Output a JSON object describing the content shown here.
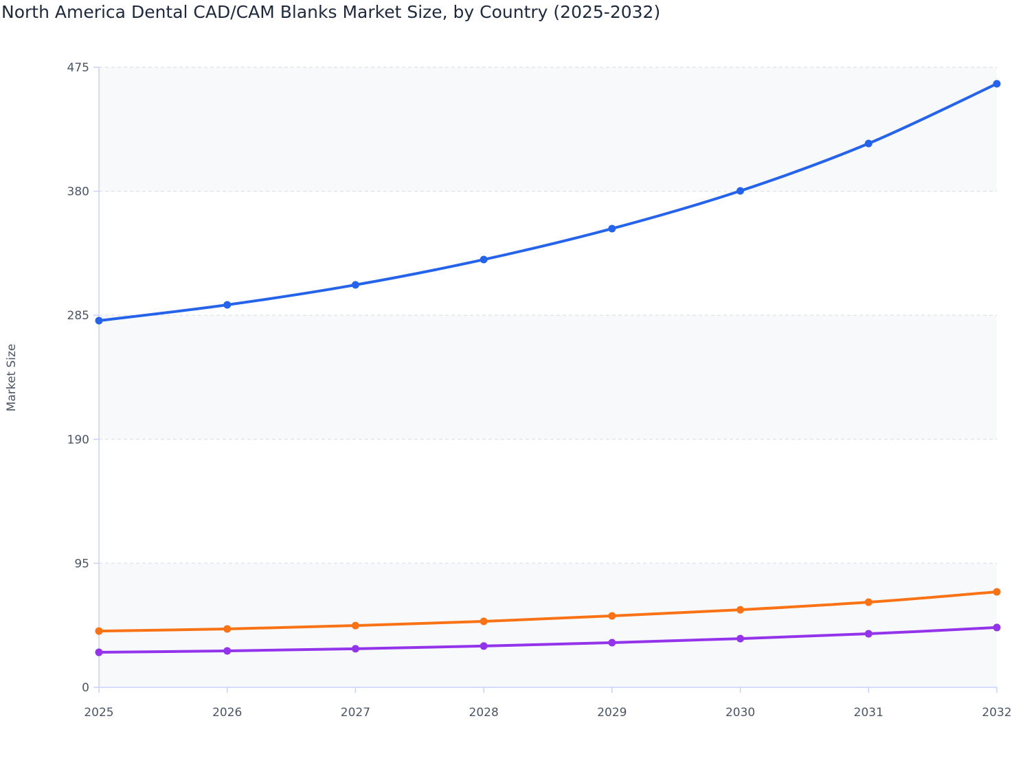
{
  "chart_data": {
    "type": "line",
    "title": "North America Dental CAD/CAM Blanks Market Size, by Country (2025-2032)",
    "xlabel": "",
    "ylabel": "Market Size",
    "x": [
      "2025",
      "2026",
      "2027",
      "2028",
      "2029",
      "2030",
      "2031",
      "2032"
    ],
    "ylim": [
      0,
      475
    ],
    "yticks": [
      "0",
      "95",
      "190",
      "285",
      "380",
      "475"
    ],
    "grid": true,
    "legend": "none",
    "series": [
      {
        "color": "#2563eb",
        "values": [
          280.9,
          293.0,
          308.3,
          327.7,
          351.4,
          380.3,
          416.6,
          462.4
        ]
      },
      {
        "color": "#f97316",
        "values": [
          43.1,
          44.7,
          47.3,
          50.5,
          54.7,
          59.4,
          65.2,
          73.1
        ]
      },
      {
        "color": "#9333ea",
        "values": [
          26.8,
          27.9,
          29.5,
          31.6,
          34.2,
          37.3,
          41.0,
          45.8
        ]
      }
    ]
  }
}
